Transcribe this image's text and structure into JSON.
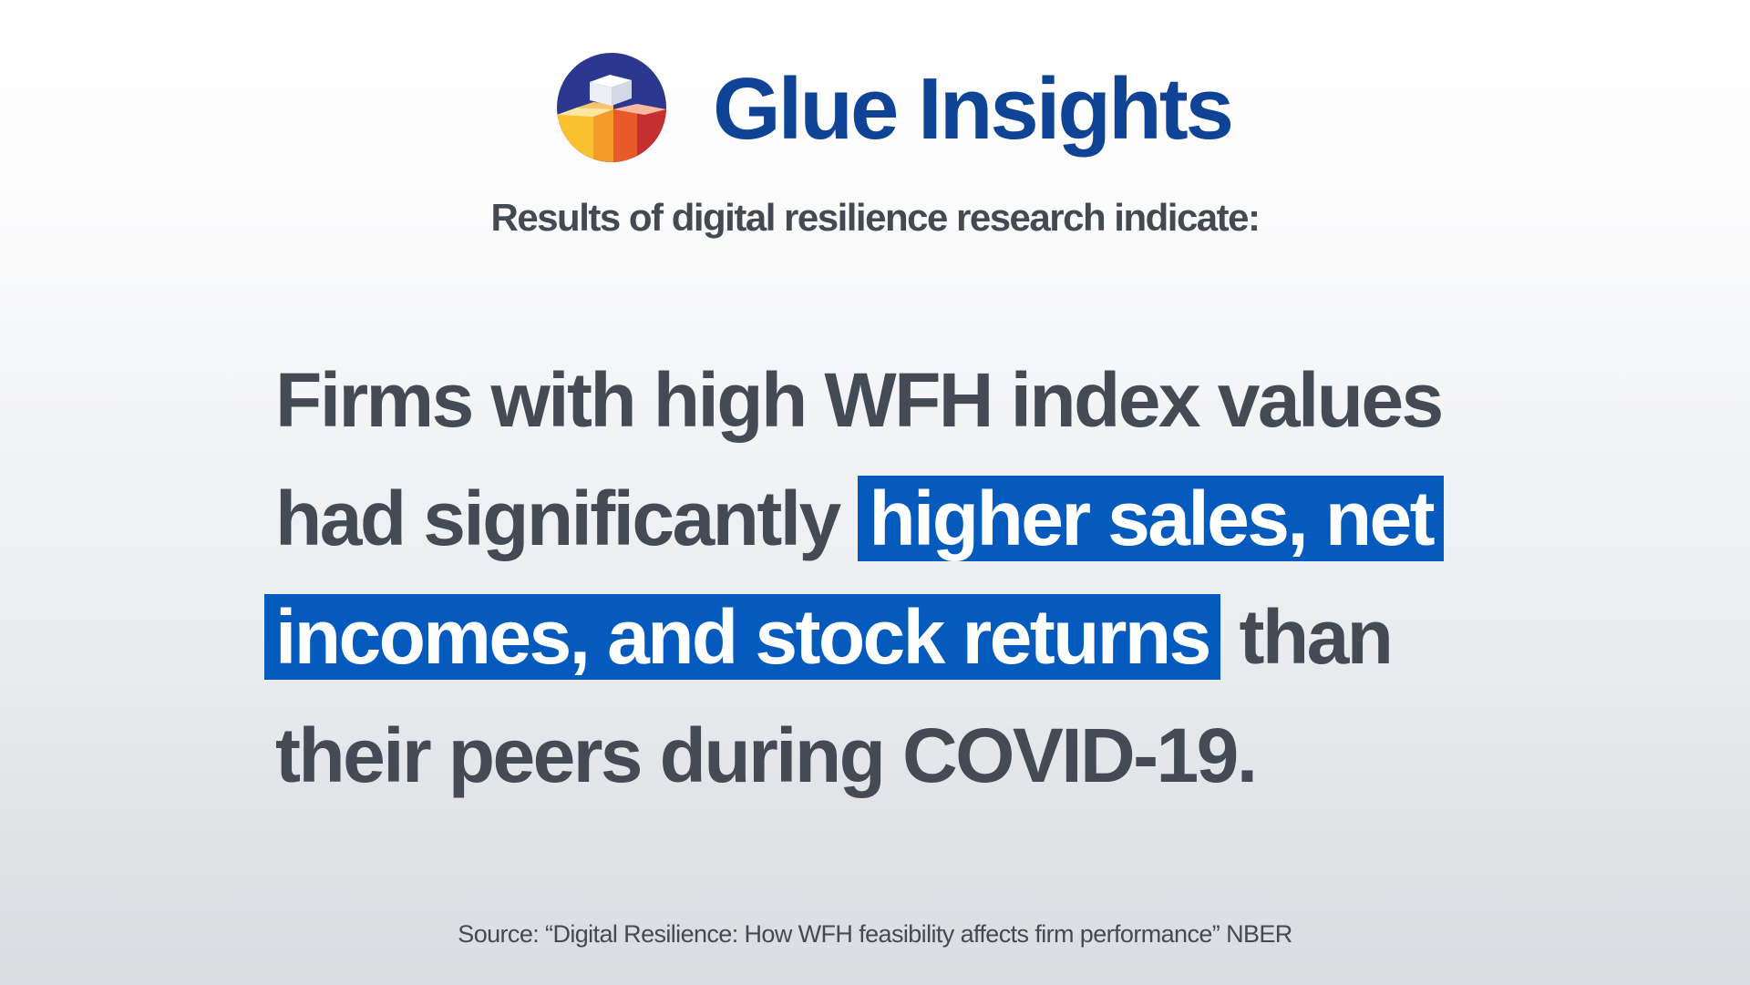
{
  "brand": {
    "name": "Glue Insights",
    "logo_icon": "stacked-blocks-logo-icon",
    "color": "#0f4396"
  },
  "subtitle": "Results of digital resilience research indicate:",
  "statement": {
    "line1": "Firms with high WFH index values",
    "line2_text": "had significantly",
    "line2_highlight": "higher sales, net",
    "line3_highlight": "incomes, and stock returns",
    "line3_text": "than",
    "line4": "their peers during COVID-19.",
    "highlight_color": "#045bbd"
  },
  "source": "Source: “Digital Resilience: How WFH feasibility affects firm performance” NBER"
}
